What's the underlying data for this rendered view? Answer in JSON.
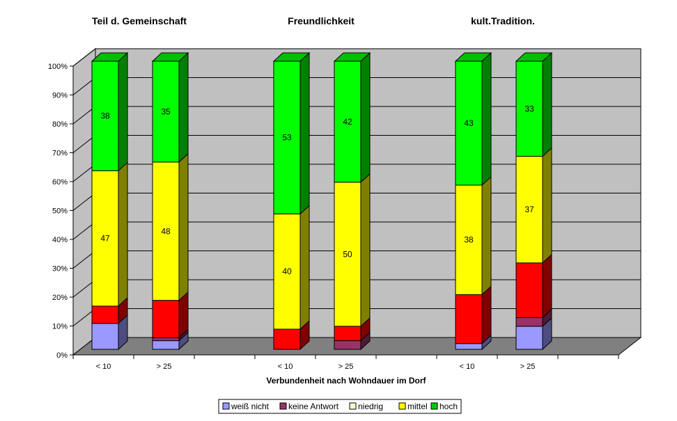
{
  "chart_data": {
    "type": "bar",
    "stacked": true,
    "three_d": true,
    "group_titles": [
      "Teil d.  Gemeinschaft",
      "Freundlichkeit",
      "kult.Tradition."
    ],
    "categories": [
      "< 10",
      "> 25",
      "",
      "<  10",
      "> 25",
      "",
      "<  10",
      ">  25"
    ],
    "category_group": [
      0,
      0,
      null,
      1,
      1,
      null,
      2,
      2
    ],
    "xlabel": "Verbundenheit nach Wohndauer im Dorf",
    "ylabel": "",
    "ylim": [
      0,
      100
    ],
    "yticks": [
      "0%",
      "10%",
      "20%",
      "30%",
      "40%",
      "50%",
      "60%",
      "70%",
      "80%",
      "90%",
      "100%"
    ],
    "grid": true,
    "legend_position": "bottom",
    "series": [
      {
        "name": "weiß nicht",
        "color": "#9999ff",
        "legend_color": "#9999ff",
        "values": [
          9,
          3,
          null,
          0,
          0,
          null,
          2,
          8
        ],
        "labels": false
      },
      {
        "name": "keine Antwort",
        "color": "#993366",
        "legend_color": "#993366",
        "values": [
          0,
          1,
          null,
          0,
          3,
          null,
          0,
          3
        ],
        "labels": false
      },
      {
        "name": "niedrig",
        "color": "#ff0000",
        "legend_color": "#ffffcc",
        "values": [
          6,
          13,
          null,
          7,
          5,
          null,
          17,
          19
        ],
        "labels": false
      },
      {
        "name": "mittel",
        "color": "#ffff00",
        "legend_color": "#ffff00",
        "values": [
          47,
          48,
          null,
          40,
          50,
          null,
          38,
          37
        ],
        "labels": true
      },
      {
        "name": "hoch",
        "color": "#00ff00",
        "legend_color": "#00cc00",
        "values": [
          38,
          35,
          null,
          53,
          42,
          null,
          43,
          33
        ],
        "labels": true
      }
    ]
  }
}
